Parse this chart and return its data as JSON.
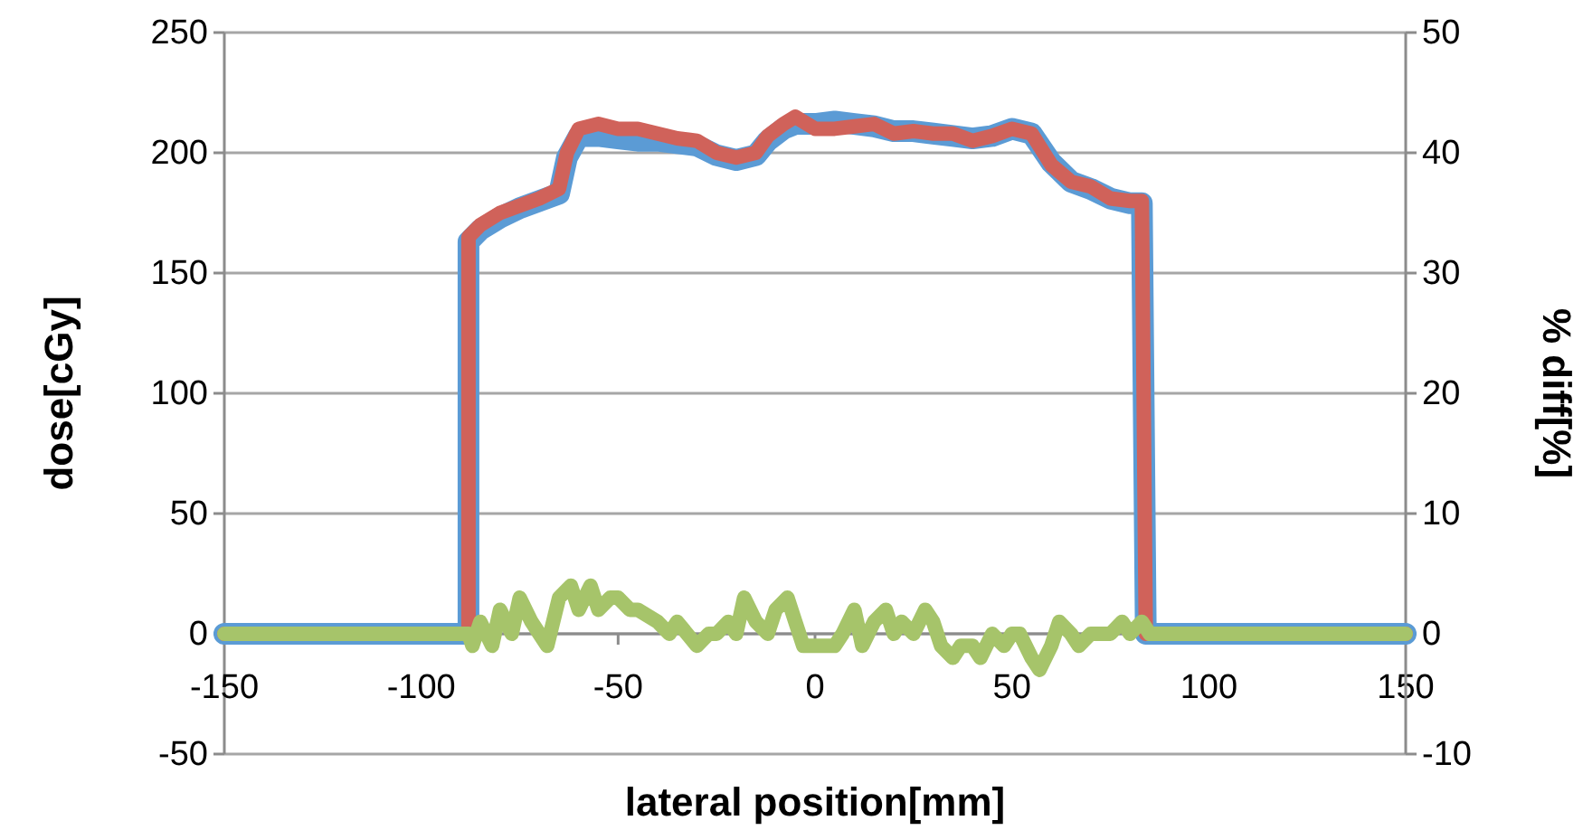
{
  "chart_data": {
    "type": "line",
    "xlabel": "lateral position[mm]",
    "ylabel": "dose[cGy]",
    "y2label": "% diff[%]",
    "xlim": [
      -150,
      150
    ],
    "xticks": [
      -150,
      -100,
      -50,
      0,
      50,
      100,
      150
    ],
    "ylim": [
      -50,
      250
    ],
    "yticks": [
      -50,
      0,
      50,
      100,
      150,
      200,
      250
    ],
    "y2lim": [
      -10,
      50
    ],
    "y2ticks": [
      -10,
      0,
      10,
      20,
      30,
      40,
      50
    ],
    "grid": "y",
    "marker": "none",
    "line_style": "solid",
    "series": [
      {
        "color": "#5b9bd5",
        "x": [
          -150,
          -88,
          -88,
          -85,
          -80,
          -75,
          -70,
          -65,
          -63,
          -60,
          -55,
          -50,
          -45,
          -40,
          -35,
          -30,
          -25,
          -20,
          -15,
          -12,
          -8,
          -5,
          0,
          5,
          10,
          15,
          20,
          25,
          30,
          35,
          40,
          45,
          50,
          55,
          60,
          65,
          70,
          75,
          80,
          83,
          84,
          150
        ],
        "values": [
          0,
          0,
          163,
          168,
          173,
          177,
          180,
          183,
          198,
          207,
          207,
          206,
          205,
          205,
          204,
          203,
          199,
          197,
          199,
          205,
          210,
          212,
          212,
          213,
          212,
          211,
          209,
          209,
          208,
          207,
          206,
          207,
          210,
          208,
          196,
          188,
          185,
          181,
          179,
          179,
          0,
          0
        ]
      },
      {
        "color": "#d0625a",
        "x": [
          -150,
          -88,
          -88,
          -85,
          -80,
          -75,
          -70,
          -65,
          -63,
          -60,
          -55,
          -50,
          -45,
          -40,
          -35,
          -30,
          -25,
          -20,
          -15,
          -12,
          -8,
          -5,
          0,
          5,
          10,
          15,
          20,
          25,
          30,
          35,
          40,
          45,
          50,
          55,
          60,
          65,
          70,
          75,
          80,
          83,
          84,
          150
        ],
        "values": [
          0,
          0,
          165,
          170,
          175,
          178,
          181,
          185,
          200,
          210,
          212,
          210,
          210,
          208,
          206,
          205,
          200,
          198,
          200,
          207,
          212,
          215,
          210,
          210,
          211,
          212,
          208,
          209,
          208,
          208,
          205,
          207,
          210,
          208,
          195,
          188,
          186,
          181,
          180,
          180,
          0,
          0
        ]
      },
      {
        "color": "#a6c46a",
        "axis": "y2",
        "x": [
          -150,
          -88,
          -87,
          -85,
          -82,
          -80,
          -77,
          -75,
          -72,
          -70,
          -68,
          -65,
          -62,
          -60,
          -57,
          -55,
          -52,
          -50,
          -47,
          -45,
          -40,
          -37,
          -35,
          -30,
          -27,
          -25,
          -22,
          -20,
          -18,
          -15,
          -12,
          -10,
          -7,
          -5,
          -3,
          0,
          3,
          5,
          7,
          10,
          12,
          15,
          18,
          20,
          22,
          25,
          28,
          30,
          32,
          35,
          37,
          40,
          42,
          45,
          48,
          50,
          52,
          55,
          57,
          60,
          62,
          65,
          67,
          70,
          72,
          75,
          78,
          80,
          83,
          85,
          150
        ],
        "values": [
          0,
          0,
          -1,
          1,
          -1,
          2,
          0,
          3,
          1,
          0,
          -1,
          3,
          4,
          2,
          4,
          2,
          3,
          3,
          2,
          2,
          1,
          0,
          1,
          -1,
          0,
          0,
          1,
          0,
          3,
          1,
          0,
          2,
          3,
          1,
          -1,
          -1,
          -1,
          -1,
          0,
          2,
          -1,
          1,
          2,
          0,
          1,
          0,
          2,
          1,
          -1,
          -2,
          -1,
          -1,
          -2,
          0,
          -1,
          0,
          0,
          -2,
          -3,
          -1,
          1,
          0,
          -1,
          0,
          0,
          0,
          1,
          0,
          1,
          0,
          0
        ]
      }
    ]
  }
}
